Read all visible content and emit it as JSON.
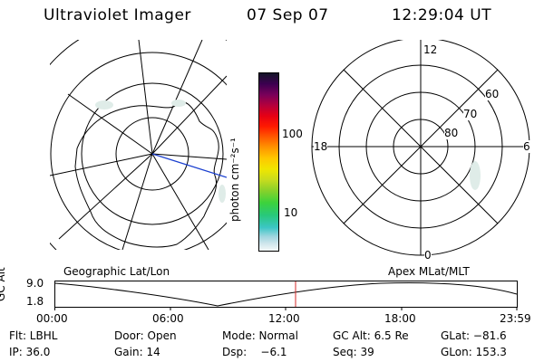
{
  "header": {
    "instrument": "Ultraviolet Imager",
    "date": "07 Sep 07",
    "time": "12:29:04 UT"
  },
  "colorbar": {
    "label": "photon cm⁻²s⁻¹",
    "ticks": [
      "100",
      "10"
    ]
  },
  "polar_plot": {
    "mlt_labels": {
      "top": "12",
      "left": "18",
      "right": "6",
      "bottom": "0"
    },
    "lat_labels": [
      "60",
      "70",
      "80"
    ]
  },
  "timeline": {
    "left_title": "Geographic Lat/Lon",
    "right_title": "Apex MLat/MLT",
    "y_axis_label": "GC Alt",
    "y_ticks": [
      "9.0",
      "1.8"
    ],
    "x_ticks": [
      "00:00",
      "06:00",
      "12:00",
      "18:00",
      "23:59"
    ],
    "marker_color": "#d42a2a"
  },
  "status": {
    "row1": [
      "Flt: LBHL",
      "Door: Open",
      "Mode: Normal",
      "GC Alt: 6.5 Re",
      "GLat: −81.6"
    ],
    "row2": [
      "IP: 36.0",
      "Gain: 14",
      "Dsp:    −6.1",
      "Seq: 39",
      "GLon: 153.3"
    ]
  },
  "colors": {
    "accent_line": "#1a3fcf",
    "marker": "#d42a2a"
  }
}
